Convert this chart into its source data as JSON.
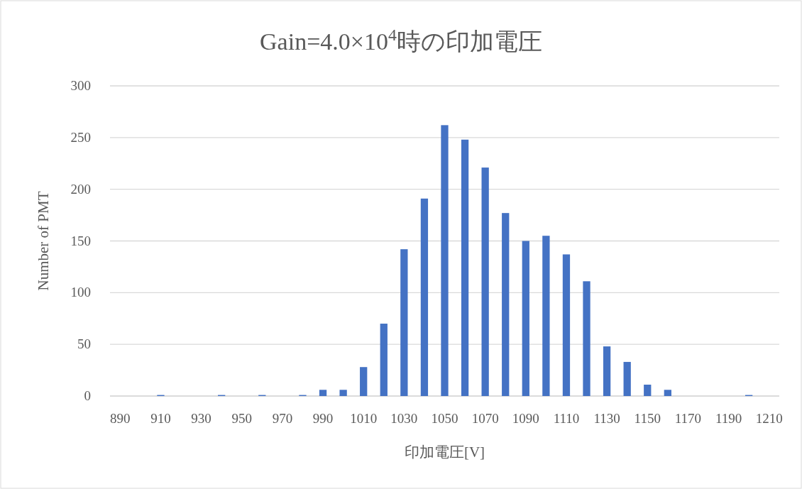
{
  "chart_data": {
    "type": "bar",
    "title": "Gain=4.0×10$^{4}$時の印加電圧",
    "xlabel": "印加電圧[V]",
    "ylabel": "Number of PMT",
    "categories": [
      "890",
      null,
      "910",
      null,
      "930",
      null,
      "950",
      null,
      "970",
      null,
      "990",
      null,
      "1010",
      null,
      "1030",
      null,
      "1050",
      null,
      "1070",
      null,
      "1090",
      null,
      "1110",
      null,
      "1130",
      null,
      "1150",
      null,
      "1170",
      null,
      "1190",
      null,
      "1210"
    ],
    "values": [
      0,
      0,
      1,
      0,
      0,
      1,
      0,
      1,
      0,
      1,
      6,
      6,
      28,
      70,
      142,
      191,
      262,
      248,
      221,
      177,
      150,
      155,
      137,
      111,
      48,
      33,
      11,
      6,
      0,
      0,
      0,
      1,
      0
    ],
    "color": "#4472c4",
    "ylim": [
      0,
      300
    ],
    "yticks": [
      0,
      50,
      100,
      150,
      200,
      250,
      300
    ],
    "grid": "y"
  }
}
